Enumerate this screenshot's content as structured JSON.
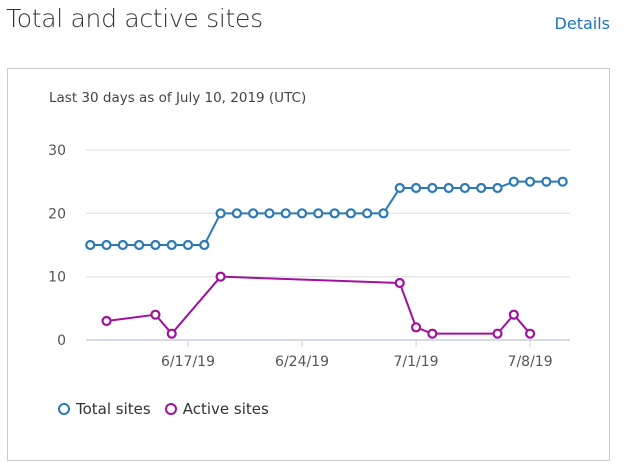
{
  "header": {
    "title": "Total and active sites",
    "details_label": "Details"
  },
  "chart_data": {
    "type": "line",
    "subtitle": "Last 30 days as of July 10, 2019 (UTC)",
    "x_ticks": [
      "6/17/19",
      "6/24/19",
      "7/1/19",
      "7/8/19"
    ],
    "y_ticks": [
      "0",
      "10",
      "20",
      "30"
    ],
    "ylim": [
      0,
      30
    ],
    "grid": true,
    "legend": "bottom-left",
    "series": [
      {
        "name": "Total sites",
        "color": "#2a7ab8",
        "points": [
          [
            "2019-06-11",
            15
          ],
          [
            "2019-06-12",
            15
          ],
          [
            "2019-06-13",
            15
          ],
          [
            "2019-06-14",
            15
          ],
          [
            "2019-06-15",
            15
          ],
          [
            "2019-06-16",
            15
          ],
          [
            "2019-06-17",
            15
          ],
          [
            "2019-06-18",
            15
          ],
          [
            "2019-06-19",
            20
          ],
          [
            "2019-06-20",
            20
          ],
          [
            "2019-06-21",
            20
          ],
          [
            "2019-06-22",
            20
          ],
          [
            "2019-06-23",
            20
          ],
          [
            "2019-06-24",
            20
          ],
          [
            "2019-06-25",
            20
          ],
          [
            "2019-06-26",
            20
          ],
          [
            "2019-06-27",
            20
          ],
          [
            "2019-06-28",
            20
          ],
          [
            "2019-06-29",
            20
          ],
          [
            "2019-06-30",
            24
          ],
          [
            "2019-07-01",
            24
          ],
          [
            "2019-07-02",
            24
          ],
          [
            "2019-07-03",
            24
          ],
          [
            "2019-07-04",
            24
          ],
          [
            "2019-07-05",
            24
          ],
          [
            "2019-07-06",
            24
          ],
          [
            "2019-07-07",
            25
          ],
          [
            "2019-07-08",
            25
          ],
          [
            "2019-07-09",
            25
          ],
          [
            "2019-07-10",
            25
          ]
        ]
      },
      {
        "name": "Active sites",
        "color": "#a0129e",
        "points": [
          [
            "2019-06-12",
            3
          ],
          [
            "2019-06-15",
            4
          ],
          [
            "2019-06-16",
            1
          ],
          [
            "2019-06-19",
            10
          ],
          [
            "2019-06-30",
            9
          ],
          [
            "2019-07-01",
            2
          ],
          [
            "2019-07-02",
            1
          ],
          [
            "2019-07-06",
            1
          ],
          [
            "2019-07-07",
            4
          ],
          [
            "2019-07-08",
            1
          ]
        ]
      }
    ]
  }
}
